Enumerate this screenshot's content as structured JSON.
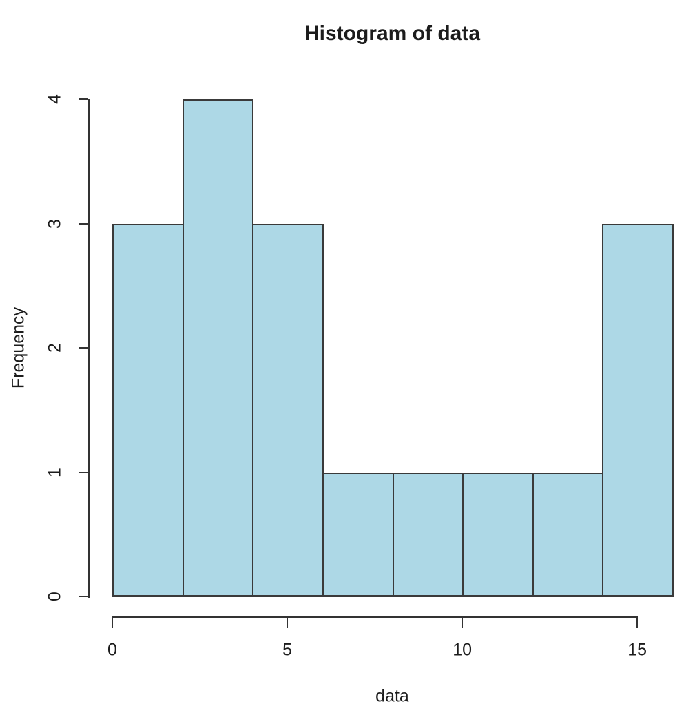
{
  "chart_data": {
    "type": "bar",
    "subtype": "histogram",
    "title": "Histogram of data",
    "xlabel": "data",
    "ylabel": "Frequency",
    "bin_edges": [
      0,
      2,
      4,
      6,
      8,
      10,
      12,
      14,
      16
    ],
    "counts": [
      3,
      4,
      3,
      1,
      1,
      1,
      1,
      3
    ],
    "x_ticks": [
      "0",
      "5",
      "10",
      "15"
    ],
    "x_tick_values": [
      0,
      5,
      10,
      15
    ],
    "y_ticks": [
      "0",
      "1",
      "2",
      "3",
      "4"
    ],
    "y_tick_values": [
      0,
      1,
      2,
      3,
      4
    ],
    "xlim": [
      0,
      16
    ],
    "ylim": [
      0,
      4
    ],
    "grid": false,
    "legend": false,
    "colors": {
      "bar_fill": "#ADD8E6",
      "bar_border": "#3A3A3A",
      "axis": "#333333",
      "text": "#1C1C1C",
      "background": "#FFFFFF"
    }
  }
}
